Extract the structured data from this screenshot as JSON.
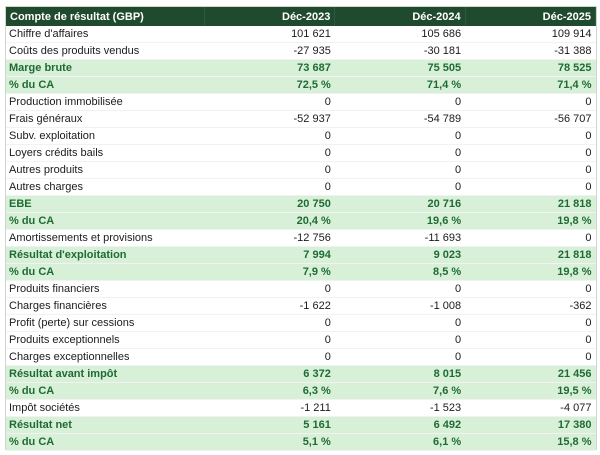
{
  "header": [
    "Compte de résultat (GBP)",
    "Déc-2023",
    "Déc-2024",
    "Déc-2025"
  ],
  "rows": [
    {
      "label": "Chiffre d'affaires",
      "values": [
        "101 621",
        "105 686",
        "109 914"
      ],
      "highlight": false
    },
    {
      "label": "Coûts des produits vendus",
      "values": [
        "-27 935",
        "-30 181",
        "-31 388"
      ],
      "highlight": false
    },
    {
      "label": "Marge brute",
      "values": [
        "73 687",
        "75 505",
        "78 525"
      ],
      "highlight": true
    },
    {
      "label": "% du CA",
      "values": [
        "72,5 %",
        "71,4 %",
        "71,4 %"
      ],
      "highlight": true
    },
    {
      "label": "Production immobilisée",
      "values": [
        "0",
        "0",
        "0"
      ],
      "highlight": false
    },
    {
      "label": "Frais généraux",
      "values": [
        "-52 937",
        "-54 789",
        "-56 707"
      ],
      "highlight": false
    },
    {
      "label": "Subv. exploitation",
      "values": [
        "0",
        "0",
        "0"
      ],
      "highlight": false
    },
    {
      "label": "Loyers crédits bails",
      "values": [
        "0",
        "0",
        "0"
      ],
      "highlight": false
    },
    {
      "label": "Autres produits",
      "values": [
        "0",
        "0",
        "0"
      ],
      "highlight": false
    },
    {
      "label": "Autres charges",
      "values": [
        "0",
        "0",
        "0"
      ],
      "highlight": false
    },
    {
      "label": "EBE",
      "values": [
        "20 750",
        "20 716",
        "21 818"
      ],
      "highlight": true
    },
    {
      "label": "% du CA",
      "values": [
        "20,4 %",
        "19,6 %",
        "19,8 %"
      ],
      "highlight": true
    },
    {
      "label": "Amortissements et provisions",
      "values": [
        "-12 756",
        "-11 693",
        "0"
      ],
      "highlight": false
    },
    {
      "label": "Résultat d'exploitation",
      "values": [
        "7 994",
        "9 023",
        "21 818"
      ],
      "highlight": true
    },
    {
      "label": "% du CA",
      "values": [
        "7,9 %",
        "8,5 %",
        "19,8 %"
      ],
      "highlight": true
    },
    {
      "label": "Produits financiers",
      "values": [
        "0",
        "0",
        "0"
      ],
      "highlight": false
    },
    {
      "label": "Charges financières",
      "values": [
        "-1 622",
        "-1 008",
        "-362"
      ],
      "highlight": false
    },
    {
      "label": "Profit (perte) sur cessions",
      "values": [
        "0",
        "0",
        "0"
      ],
      "highlight": false
    },
    {
      "label": "Produits exceptionnels",
      "values": [
        "0",
        "0",
        "0"
      ],
      "highlight": false
    },
    {
      "label": "Charges exceptionnelles",
      "values": [
        "0",
        "0",
        "0"
      ],
      "highlight": false
    },
    {
      "label": "Résultat avant impôt",
      "values": [
        "6 372",
        "8 015",
        "21 456"
      ],
      "highlight": true
    },
    {
      "label": "% du CA",
      "values": [
        "6,3 %",
        "7,6 %",
        "19,5 %"
      ],
      "highlight": true
    },
    {
      "label": "Impôt sociétés",
      "values": [
        "-1 211",
        "-1 523",
        "-4 077"
      ],
      "highlight": false
    },
    {
      "label": "Résultat net",
      "values": [
        "5 161",
        "6 492",
        "17 380"
      ],
      "highlight": true
    },
    {
      "label": "% du CA",
      "values": [
        "5,1 %",
        "6,1 %",
        "15,8 %"
      ],
      "highlight": true
    }
  ],
  "colors": {
    "header_bg": "#1f4a2e",
    "highlight_bg": "#d8f0d8",
    "highlight_text": "#1f6b34"
  }
}
